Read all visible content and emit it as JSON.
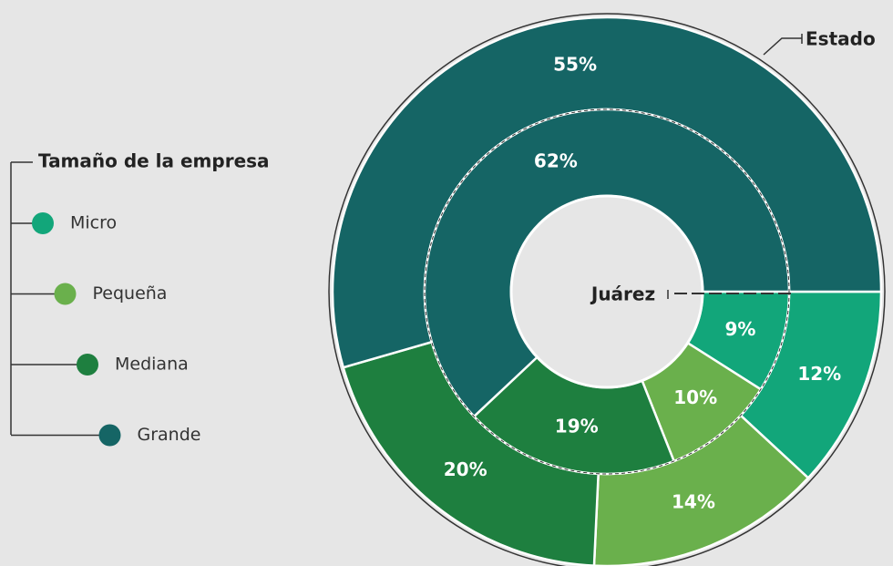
{
  "chart_data": {
    "type": "donut",
    "legend_title": "Tamaño de la empresa",
    "categories": [
      "Micro",
      "Pequeña",
      "Mediana",
      "Grande"
    ],
    "colors": [
      "#12a67a",
      "#6ab04c",
      "#1e7f3f",
      "#156565"
    ],
    "series": [
      {
        "name": "Estado",
        "values": [
          12,
          14,
          20,
          55
        ],
        "value_labels": [
          "12%",
          "14%",
          "20%",
          "55%"
        ]
      },
      {
        "name": "Juárez",
        "values": [
          9,
          10,
          19,
          62
        ],
        "value_labels": [
          "9%",
          "10%",
          "19%",
          "62%"
        ]
      }
    ]
  }
}
